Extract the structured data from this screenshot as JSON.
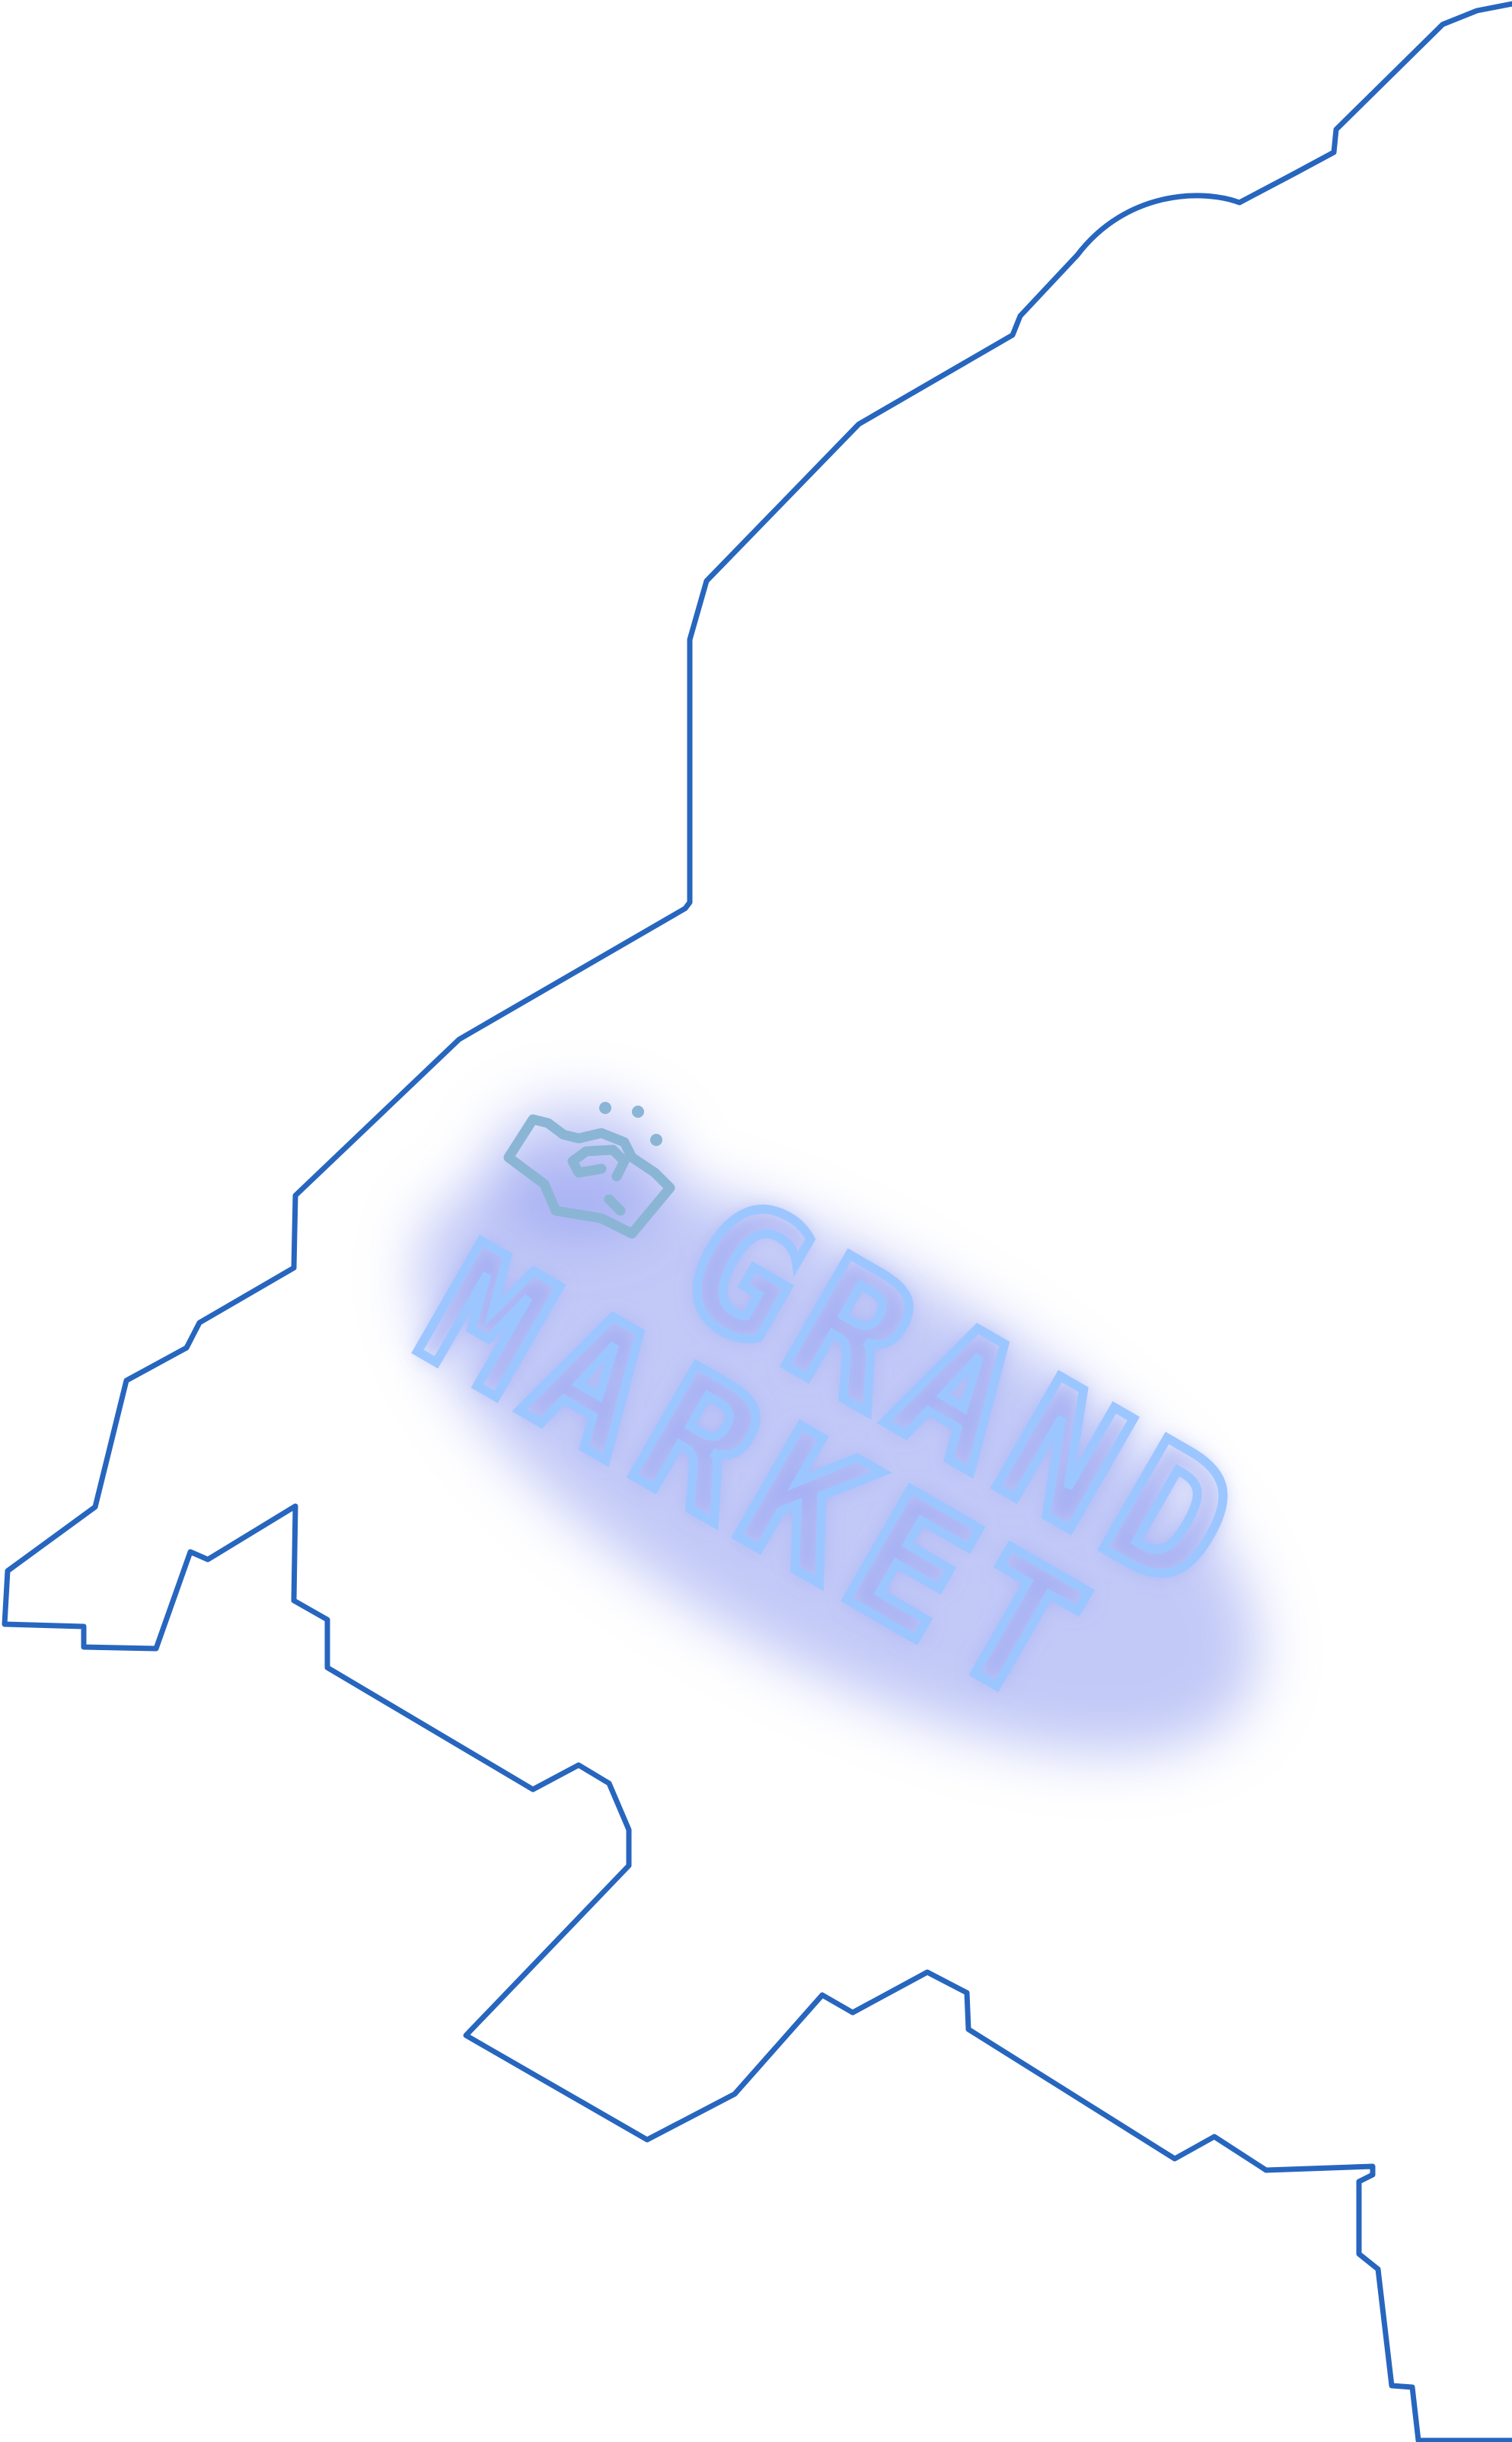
{
  "map": {
    "colors": {
      "background": "#ffffff",
      "outline": "#2766bf",
      "neon": "#9cc6ff",
      "glow": "#8f9cf0",
      "logo": "#8bb5d4"
    },
    "logo": {
      "icon": "shell-coin-icon",
      "title_line_1": "GRAND",
      "title_line_2": "MARKET"
    }
  }
}
